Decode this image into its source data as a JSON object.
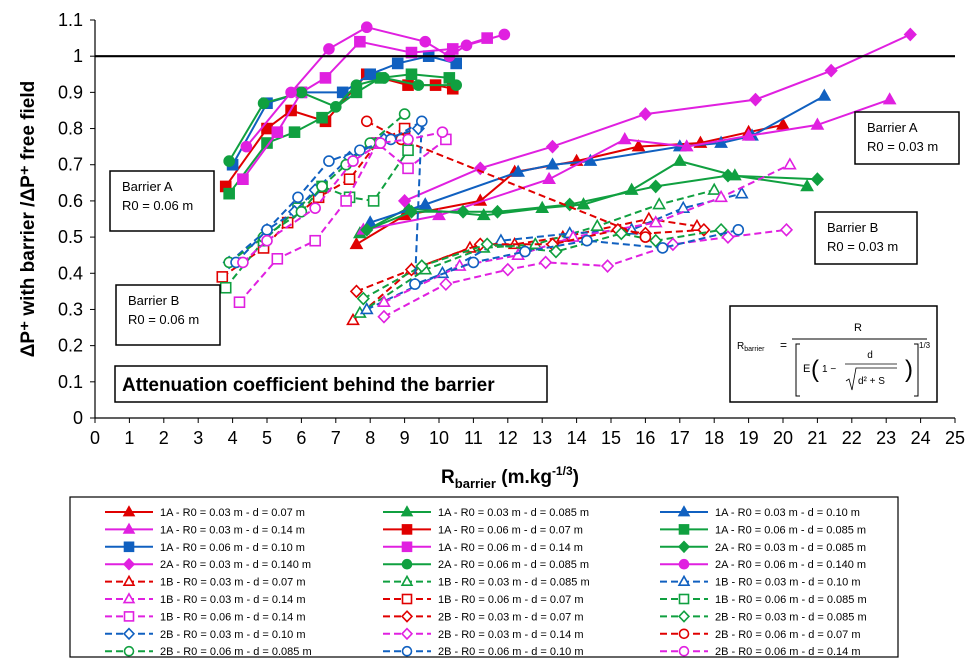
{
  "chart_data": {
    "type": "scatter",
    "title": "",
    "ylabel": "ΔP⁺ with barrier /ΔP⁺ free field",
    "xlabel_main": "R",
    "xlabel_sub": "barrier",
    "xlabel_units": " (m.kg",
    "xlabel_exp": "-1/3",
    "xlabel_close": ")",
    "xlim": [
      0,
      25
    ],
    "ylim": [
      0,
      1.1
    ],
    "xticks": [
      "0",
      "1",
      "2",
      "3",
      "4",
      "5",
      "6",
      "7",
      "8",
      "9",
      "10",
      "11",
      "12",
      "13",
      "14",
      "15",
      "16",
      "17",
      "18",
      "19",
      "20",
      "21",
      "22",
      "23",
      "24",
      "25"
    ],
    "yticks": [
      "0",
      "0.1",
      "0.2",
      "0.3",
      "0.4",
      "0.5",
      "0.6",
      "0.7",
      "0.8",
      "0.9",
      "1",
      "1.1"
    ],
    "reference_line": 1.0,
    "grid": false,
    "legend_placement": "bottom",
    "annotations": {
      "title_box": "Attenuation coefficient behind the barrier",
      "barrierA_006": [
        "Barrier A",
        "R0 = 0.06 m"
      ],
      "barrierB_006": [
        "Barrier B",
        "R0 = 0.06 m"
      ],
      "barrierA_003": [
        "Barrier A",
        "R0 = 0.03 m"
      ],
      "barrierB_003": [
        "Barrier B",
        "R0 = 0.03 m"
      ],
      "formula": {
        "lhs": "R",
        "lhs_sub": "barrier",
        "eq": "=",
        "num": "R",
        "den_E": "E",
        "den_one": "1 −",
        "den_d": "d",
        "den_sqrt": "d² + S",
        "den_exp": "1/3"
      }
    },
    "series": [
      {
        "name": "1A - R0 = 0.03 m - d = 0.07 m",
        "color": "#e00000",
        "marker": "triangle",
        "filled": true,
        "dashed": false,
        "points": [
          [
            7.6,
            0.48
          ],
          [
            9.0,
            0.56
          ],
          [
            11.2,
            0.6
          ],
          [
            12.2,
            0.68
          ],
          [
            14.0,
            0.71
          ],
          [
            15.8,
            0.75
          ],
          [
            17.6,
            0.76
          ],
          [
            19.0,
            0.79
          ],
          [
            20.0,
            0.81
          ]
        ]
      },
      {
        "name": "1A - R0 = 0.03 m - d = 0.085 m",
        "color": "#10a040",
        "marker": "triangle",
        "filled": true,
        "dashed": false,
        "points": [
          [
            7.7,
            0.51
          ],
          [
            9.1,
            0.58
          ],
          [
            11.3,
            0.56
          ],
          [
            13.0,
            0.58
          ],
          [
            14.2,
            0.59
          ],
          [
            15.6,
            0.63
          ],
          [
            17.0,
            0.71
          ],
          [
            18.6,
            0.67
          ],
          [
            20.7,
            0.64
          ]
        ]
      },
      {
        "name": "1A - R0 = 0.03 m - d = 0.10 m",
        "color": "#1060c0",
        "marker": "triangle",
        "filled": true,
        "dashed": false,
        "points": [
          [
            8.0,
            0.54
          ],
          [
            9.6,
            0.59
          ],
          [
            12.3,
            0.68
          ],
          [
            13.3,
            0.7
          ],
          [
            14.4,
            0.71
          ],
          [
            17.0,
            0.75
          ],
          [
            18.2,
            0.76
          ],
          [
            19.1,
            0.78
          ],
          [
            21.2,
            0.89
          ]
        ]
      },
      {
        "name": "1A - R0 = 0.03 m - d = 0.14 m",
        "color": "#e020e0",
        "marker": "triangle",
        "filled": true,
        "dashed": false,
        "points": [
          [
            7.8,
            0.52
          ],
          [
            10.0,
            0.56
          ],
          [
            13.2,
            0.66
          ],
          [
            15.4,
            0.77
          ],
          [
            17.2,
            0.75
          ],
          [
            19.0,
            0.78
          ],
          [
            21.0,
            0.81
          ],
          [
            23.1,
            0.88
          ]
        ]
      },
      {
        "name": "1A - R0 = 0.06 m - d = 0.07 m",
        "color": "#e00000",
        "marker": "square",
        "filled": true,
        "dashed": false,
        "points": [
          [
            3.8,
            0.64
          ],
          [
            5.0,
            0.8
          ],
          [
            5.7,
            0.85
          ],
          [
            6.7,
            0.82
          ],
          [
            7.9,
            0.95
          ],
          [
            9.1,
            0.92
          ],
          [
            9.9,
            0.92
          ],
          [
            10.4,
            0.91
          ]
        ]
      },
      {
        "name": "1A - R0 = 0.06 m - d = 0.085 m",
        "color": "#10a040",
        "marker": "square",
        "filled": true,
        "dashed": false,
        "points": [
          [
            3.9,
            0.62
          ],
          [
            5.0,
            0.76
          ],
          [
            5.8,
            0.79
          ],
          [
            6.6,
            0.83
          ],
          [
            7.6,
            0.9
          ],
          [
            8.3,
            0.94
          ],
          [
            9.2,
            0.95
          ],
          [
            10.3,
            0.94
          ]
        ]
      },
      {
        "name": "1A - R0 = 0.06 m - d = 0.10 m",
        "color": "#1060c0",
        "marker": "square",
        "filled": true,
        "dashed": false,
        "points": [
          [
            4.0,
            0.7
          ],
          [
            5.0,
            0.87
          ],
          [
            6.0,
            0.9
          ],
          [
            7.2,
            0.9
          ],
          [
            8.0,
            0.95
          ],
          [
            8.8,
            0.98
          ],
          [
            9.7,
            1.0
          ],
          [
            10.5,
            0.98
          ]
        ]
      },
      {
        "name": "1A - R0 = 0.06 m - d = 0.14 m",
        "color": "#e020e0",
        "marker": "square",
        "filled": true,
        "dashed": false,
        "points": [
          [
            4.3,
            0.66
          ],
          [
            5.3,
            0.79
          ],
          [
            6.0,
            0.9
          ],
          [
            6.7,
            0.94
          ],
          [
            7.7,
            1.04
          ],
          [
            9.2,
            1.01
          ],
          [
            10.4,
            1.02
          ],
          [
            11.4,
            1.05
          ]
        ]
      },
      {
        "name": "2A - R0 = 0.03 m - d = 0.085 m",
        "color": "#10a040",
        "marker": "diamond",
        "filled": true,
        "dashed": false,
        "points": [
          [
            7.9,
            0.52
          ],
          [
            9.2,
            0.57
          ],
          [
            10.7,
            0.57
          ],
          [
            11.7,
            0.57
          ],
          [
            13.8,
            0.59
          ],
          [
            16.3,
            0.64
          ],
          [
            18.4,
            0.67
          ],
          [
            21.0,
            0.66
          ]
        ]
      },
      {
        "name": "2A - R0 = 0.03 m - d = 0.140 m",
        "color": "#e020e0",
        "marker": "diamond",
        "filled": true,
        "dashed": false,
        "points": [
          [
            9.0,
            0.6
          ],
          [
            11.2,
            0.69
          ],
          [
            13.3,
            0.75
          ],
          [
            16.0,
            0.84
          ],
          [
            19.2,
            0.88
          ],
          [
            21.4,
            0.96
          ],
          [
            23.7,
            1.06
          ]
        ]
      },
      {
        "name": "2A - R0 = 0.06 m - d = 0.085 m",
        "color": "#10a040",
        "marker": "circle",
        "filled": true,
        "dashed": false,
        "points": [
          [
            3.9,
            0.71
          ],
          [
            4.9,
            0.87
          ],
          [
            6.0,
            0.9
          ],
          [
            7.0,
            0.86
          ],
          [
            7.6,
            0.92
          ],
          [
            8.4,
            0.94
          ],
          [
            9.4,
            0.92
          ],
          [
            10.5,
            0.92
          ]
        ]
      },
      {
        "name": "2A - R0 = 0.06 m - d = 0.140 m",
        "color": "#e020e0",
        "marker": "circle",
        "filled": true,
        "dashed": false,
        "points": [
          [
            4.4,
            0.75
          ],
          [
            5.7,
            0.9
          ],
          [
            6.8,
            1.02
          ],
          [
            7.9,
            1.08
          ],
          [
            9.6,
            1.04
          ],
          [
            10.3,
            1.0
          ],
          [
            10.8,
            1.03
          ],
          [
            11.9,
            1.06
          ]
        ]
      },
      {
        "name": "1B - R0 = 0.03 m - d = 0.07 m",
        "color": "#e00000",
        "marker": "triangle",
        "filled": false,
        "dashed": true,
        "points": [
          [
            7.5,
            0.27
          ],
          [
            9.2,
            0.41
          ],
          [
            10.9,
            0.47
          ],
          [
            12.2,
            0.48
          ],
          [
            13.6,
            0.5
          ],
          [
            16.1,
            0.55
          ],
          [
            17.5,
            0.53
          ]
        ]
      },
      {
        "name": "1B - R0 = 0.03 m - d = 0.085 m",
        "color": "#10a040",
        "marker": "triangle",
        "filled": false,
        "dashed": true,
        "points": [
          [
            7.7,
            0.29
          ],
          [
            9.6,
            0.41
          ],
          [
            11.3,
            0.47
          ],
          [
            12.8,
            0.48
          ],
          [
            14.6,
            0.53
          ],
          [
            16.4,
            0.59
          ],
          [
            18.0,
            0.63
          ]
        ]
      },
      {
        "name": "1B - R0 = 0.03 m - d = 0.10 m",
        "color": "#1060c0",
        "marker": "triangle",
        "filled": false,
        "dashed": true,
        "points": [
          [
            7.9,
            0.3
          ],
          [
            10.1,
            0.4
          ],
          [
            11.8,
            0.49
          ],
          [
            13.8,
            0.51
          ],
          [
            15.6,
            0.52
          ],
          [
            17.1,
            0.58
          ],
          [
            18.8,
            0.62
          ]
        ]
      },
      {
        "name": "1B - R0 = 0.03 m - d = 0.14 m",
        "color": "#e020e0",
        "marker": "triangle",
        "filled": false,
        "dashed": true,
        "points": [
          [
            8.4,
            0.32
          ],
          [
            10.6,
            0.42
          ],
          [
            12.3,
            0.45
          ],
          [
            13.9,
            0.5
          ],
          [
            16.3,
            0.54
          ],
          [
            18.2,
            0.61
          ],
          [
            20.2,
            0.7
          ]
        ]
      },
      {
        "name": "1B - R0 = 0.06 m - d = 0.07 m",
        "color": "#e00000",
        "marker": "square",
        "filled": false,
        "dashed": true,
        "points": [
          [
            3.7,
            0.39
          ],
          [
            4.9,
            0.47
          ],
          [
            5.6,
            0.54
          ],
          [
            6.5,
            0.61
          ],
          [
            7.4,
            0.66
          ],
          [
            8.2,
            0.76
          ],
          [
            9.0,
            0.8
          ]
        ]
      },
      {
        "name": "1B - R0 = 0.06 m - d = 0.085 m",
        "color": "#10a040",
        "marker": "square",
        "filled": false,
        "dashed": true,
        "points": [
          [
            3.8,
            0.36
          ],
          [
            4.9,
            0.49
          ],
          [
            5.9,
            0.58
          ],
          [
            6.6,
            0.64
          ],
          [
            7.4,
            0.61
          ],
          [
            8.1,
            0.6
          ],
          [
            9.1,
            0.74
          ]
        ]
      },
      {
        "name": "1B - R0 = 0.06 m - d = 0.14 m",
        "color": "#e020e0",
        "marker": "square",
        "filled": false,
        "dashed": true,
        "points": [
          [
            4.2,
            0.32
          ],
          [
            5.3,
            0.44
          ],
          [
            6.4,
            0.49
          ],
          [
            7.3,
            0.6
          ],
          [
            8.2,
            0.76
          ],
          [
            9.1,
            0.69
          ],
          [
            10.2,
            0.77
          ]
        ]
      },
      {
        "name": "2B - R0 = 0.03 m - d = 0.07 m",
        "color": "#e00000",
        "marker": "diamond",
        "filled": false,
        "dashed": true,
        "points": [
          [
            7.6,
            0.35
          ],
          [
            9.2,
            0.41
          ],
          [
            11.2,
            0.48
          ],
          [
            13.3,
            0.48
          ],
          [
            15.2,
            0.52
          ],
          [
            16.0,
            0.51
          ],
          [
            17.7,
            0.52
          ]
        ]
      },
      {
        "name": "2B - R0 = 0.03 m - d = 0.085 m",
        "color": "#10a040",
        "marker": "diamond",
        "filled": false,
        "dashed": true,
        "points": [
          [
            7.8,
            0.33
          ],
          [
            9.5,
            0.42
          ],
          [
            11.4,
            0.48
          ],
          [
            13.4,
            0.46
          ],
          [
            15.3,
            0.51
          ],
          [
            16.3,
            0.49
          ],
          [
            18.2,
            0.52
          ]
        ]
      },
      {
        "name": "2B - R0 = 0.03 m - d = 0.10 m",
        "color": "#1060c0",
        "marker": "diamond",
        "filled": false,
        "dashed": true,
        "points": [
          [
            3.9,
            0.43
          ],
          [
            5.0,
            0.52
          ],
          [
            5.8,
            0.57
          ],
          [
            6.4,
            0.63
          ],
          [
            7.4,
            0.72
          ],
          [
            8.4,
            0.77
          ],
          [
            9.4,
            0.8
          ]
        ]
      },
      {
        "name": "2B - R0 = 0.03 m - d = 0.14 m",
        "color": "#e020e0",
        "marker": "diamond",
        "filled": false,
        "dashed": true,
        "points": [
          [
            8.4,
            0.28
          ],
          [
            10.2,
            0.37
          ],
          [
            12.0,
            0.41
          ],
          [
            13.1,
            0.43
          ],
          [
            14.9,
            0.42
          ],
          [
            16.8,
            0.48
          ],
          [
            18.4,
            0.5
          ],
          [
            20.1,
            0.52
          ]
        ]
      },
      {
        "name": "2B - R0 = 0.06 m - d = 0.07 m",
        "color": "#e00000",
        "marker": "circle",
        "filled": false,
        "dashed": true,
        "points": [
          [
            7.9,
            0.82
          ],
          [
            8.9,
            0.77
          ],
          [
            16.0,
            0.5
          ]
        ]
      },
      {
        "name": "2B - R0 = 0.06 m - d = 0.085 m",
        "color": "#10a040",
        "marker": "circle",
        "filled": false,
        "dashed": true,
        "points": [
          [
            3.9,
            0.43
          ],
          [
            4.9,
            0.5
          ],
          [
            6.0,
            0.57
          ],
          [
            6.6,
            0.64
          ],
          [
            7.3,
            0.7
          ],
          [
            8.0,
            0.76
          ],
          [
            9.0,
            0.84
          ]
        ]
      },
      {
        "name": "2B - R0 = 0.06 m - d = 0.10 m",
        "color": "#1060c0",
        "marker": "circle",
        "filled": false,
        "dashed": true,
        "points": [
          [
            4.1,
            0.43
          ],
          [
            5.0,
            0.52
          ],
          [
            5.9,
            0.61
          ],
          [
            6.8,
            0.71
          ],
          [
            7.7,
            0.74
          ],
          [
            8.6,
            0.77
          ],
          [
            9.5,
            0.82
          ],
          [
            9.3,
            0.37
          ],
          [
            11.0,
            0.43
          ],
          [
            12.5,
            0.46
          ],
          [
            14.3,
            0.49
          ],
          [
            16.5,
            0.47
          ],
          [
            18.7,
            0.52
          ]
        ]
      },
      {
        "name": "2B - R0 = 0.06 m - d = 0.14 m",
        "color": "#e020e0",
        "marker": "circle",
        "filled": false,
        "dashed": true,
        "points": [
          [
            4.3,
            0.43
          ],
          [
            5.0,
            0.49
          ],
          [
            6.4,
            0.58
          ],
          [
            7.5,
            0.71
          ],
          [
            8.3,
            0.76
          ],
          [
            9.1,
            0.77
          ],
          [
            10.1,
            0.79
          ]
        ]
      }
    ]
  }
}
